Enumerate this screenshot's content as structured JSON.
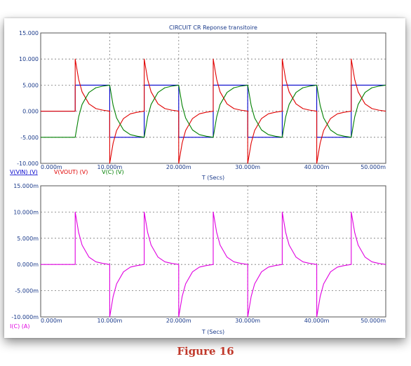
{
  "figure_caption": "Figure 16",
  "chart_data": [
    {
      "type": "line",
      "title": "CIRCUIT CR Reponse transitoire",
      "xlabel": "T (Secs)",
      "ylabel": "",
      "xlim": [
        0,
        0.05
      ],
      "ylim": [
        -10,
        15
      ],
      "x_ticks": [
        0,
        0.01,
        0.02,
        0.03,
        0.04,
        0.05
      ],
      "x_tick_labels": [
        "0.000m",
        "10.000m",
        "20.000m",
        "30.000m",
        "40.000m",
        "50.000m"
      ],
      "y_ticks": [
        -10,
        -5,
        0,
        5,
        10,
        15
      ],
      "y_tick_labels": [
        "-10.000",
        "-5.000",
        "0.000",
        "5.000",
        "10.000",
        "15.000"
      ],
      "grid": true,
      "legend_placement": "bottom-left",
      "series": [
        {
          "name": "V(VIN) (V)",
          "color": "#0000cc",
          "x": [
            0,
            0.005,
            0.005,
            0.01,
            0.01,
            0.015,
            0.015,
            0.02,
            0.02,
            0.025,
            0.025,
            0.03,
            0.03,
            0.035,
            0.035,
            0.04,
            0.04,
            0.045,
            0.045,
            0.05
          ],
          "y": [
            0,
            0,
            5,
            5,
            -5,
            -5,
            5,
            5,
            -5,
            -5,
            5,
            5,
            -5,
            -5,
            5,
            5,
            -5,
            -5,
            5,
            5
          ]
        },
        {
          "name": "V(VOUT) (V)",
          "color": "#e00000",
          "x": [
            0,
            0.005,
            0.005,
            0.0055,
            0.006,
            0.007,
            0.008,
            0.009,
            0.01,
            0.01,
            0.0105,
            0.011,
            0.012,
            0.013,
            0.014,
            0.015,
            0.015,
            0.0155,
            0.016,
            0.017,
            0.018,
            0.019,
            0.02,
            0.02,
            0.0205,
            0.021,
            0.022,
            0.023,
            0.024,
            0.025,
            0.025,
            0.0255,
            0.026,
            0.027,
            0.028,
            0.029,
            0.03,
            0.03,
            0.0305,
            0.031,
            0.032,
            0.033,
            0.034,
            0.035,
            0.035,
            0.0355,
            0.036,
            0.037,
            0.038,
            0.039,
            0.04,
            0.04,
            0.0405,
            0.041,
            0.042,
            0.043,
            0.044,
            0.045,
            0.045,
            0.0455,
            0.046,
            0.047,
            0.048,
            0.049,
            0.05
          ],
          "y": [
            0,
            0,
            10,
            6.1,
            3.7,
            1.4,
            0.5,
            0.2,
            0,
            -10,
            -6.1,
            -3.7,
            -1.4,
            -0.5,
            -0.2,
            0,
            10,
            6.1,
            3.7,
            1.4,
            0.5,
            0.2,
            0,
            -10,
            -6.1,
            -3.7,
            -1.4,
            -0.5,
            -0.2,
            0,
            10,
            6.1,
            3.7,
            1.4,
            0.5,
            0.2,
            0,
            -10,
            -6.1,
            -3.7,
            -1.4,
            -0.5,
            -0.2,
            0,
            10,
            6.1,
            3.7,
            1.4,
            0.5,
            0.2,
            0,
            -10,
            -6.1,
            -3.7,
            -1.4,
            -0.5,
            -0.2,
            0,
            10,
            6.1,
            3.7,
            1.4,
            0.5,
            0.2,
            0
          ]
        },
        {
          "name": "V(C) (V)",
          "color": "#008000",
          "x": [
            0,
            0.005,
            0.0055,
            0.006,
            0.007,
            0.008,
            0.009,
            0.01,
            0.0105,
            0.011,
            0.012,
            0.013,
            0.014,
            0.015,
            0.0155,
            0.016,
            0.017,
            0.018,
            0.019,
            0.02,
            0.0205,
            0.021,
            0.022,
            0.023,
            0.024,
            0.025,
            0.0255,
            0.026,
            0.027,
            0.028,
            0.029,
            0.03,
            0.0305,
            0.031,
            0.032,
            0.033,
            0.034,
            0.035,
            0.0355,
            0.036,
            0.037,
            0.038,
            0.039,
            0.04,
            0.0405,
            0.041,
            0.042,
            0.043,
            0.044,
            0.045,
            0.0455,
            0.046,
            0.047,
            0.048,
            0.049,
            0.05
          ],
          "y": [
            -5,
            -5,
            -1.1,
            1.3,
            3.6,
            4.5,
            4.8,
            5,
            1.1,
            -1.3,
            -3.6,
            -4.5,
            -4.8,
            -5,
            -1.1,
            1.3,
            3.6,
            4.5,
            4.8,
            5,
            1.1,
            -1.3,
            -3.6,
            -4.5,
            -4.8,
            -5,
            -1.1,
            1.3,
            3.6,
            4.5,
            4.8,
            5,
            1.1,
            -1.3,
            -3.6,
            -4.5,
            -4.8,
            -5,
            -1.1,
            1.3,
            3.6,
            4.5,
            4.8,
            5,
            1.1,
            -1.3,
            -3.6,
            -4.5,
            -4.8,
            -5,
            -1.1,
            1.3,
            3.6,
            4.5,
            4.8,
            5
          ]
        }
      ]
    },
    {
      "type": "line",
      "title": "",
      "xlabel": "T (Secs)",
      "ylabel": "",
      "xlim": [
        0,
        0.05
      ],
      "ylim": [
        -0.01,
        0.015
      ],
      "x_ticks": [
        0,
        0.01,
        0.02,
        0.03,
        0.04,
        0.05
      ],
      "x_tick_labels": [
        "0.000m",
        "10.000m",
        "20.000m",
        "30.000m",
        "40.000m",
        "50.000m"
      ],
      "y_ticks": [
        -0.01,
        -0.005,
        0,
        0.005,
        0.01,
        0.015
      ],
      "y_tick_labels": [
        "-10.000m",
        "-5.000m",
        "0.000m",
        "5.000m",
        "10.000m",
        "15.000m"
      ],
      "grid": true,
      "legend_placement": "bottom-left",
      "series": [
        {
          "name": "I(C) (A)",
          "color": "#e000e0",
          "x": [
            0,
            0.005,
            0.005,
            0.0055,
            0.006,
            0.007,
            0.008,
            0.009,
            0.01,
            0.01,
            0.0105,
            0.011,
            0.012,
            0.013,
            0.014,
            0.015,
            0.015,
            0.0155,
            0.016,
            0.017,
            0.018,
            0.019,
            0.02,
            0.02,
            0.0205,
            0.021,
            0.022,
            0.023,
            0.024,
            0.025,
            0.025,
            0.0255,
            0.026,
            0.027,
            0.028,
            0.029,
            0.03,
            0.03,
            0.0305,
            0.031,
            0.032,
            0.033,
            0.034,
            0.035,
            0.035,
            0.0355,
            0.036,
            0.037,
            0.038,
            0.039,
            0.04,
            0.04,
            0.0405,
            0.041,
            0.042,
            0.043,
            0.044,
            0.045,
            0.045,
            0.0455,
            0.046,
            0.047,
            0.048,
            0.049,
            0.05
          ],
          "y": [
            0,
            0,
            0.01,
            0.0061,
            0.0037,
            0.0014,
            0.0005,
            0.0002,
            0,
            -0.01,
            -0.0061,
            -0.0037,
            -0.0014,
            -0.0005,
            -0.0002,
            0,
            0.01,
            0.0061,
            0.0037,
            0.0014,
            0.0005,
            0.0002,
            0,
            -0.01,
            -0.0061,
            -0.0037,
            -0.0014,
            -0.0005,
            -0.0002,
            0,
            0.01,
            0.0061,
            0.0037,
            0.0014,
            0.0005,
            0.0002,
            0,
            -0.01,
            -0.0061,
            -0.0037,
            -0.0014,
            -0.0005,
            -0.0002,
            0,
            0.01,
            0.0061,
            0.0037,
            0.0014,
            0.0005,
            0.0002,
            0,
            -0.01,
            -0.0061,
            -0.0037,
            -0.0014,
            -0.0005,
            -0.0002,
            0,
            0.01,
            0.0061,
            0.0037,
            0.0014,
            0.0005,
            0.0002,
            0
          ]
        }
      ]
    }
  ]
}
